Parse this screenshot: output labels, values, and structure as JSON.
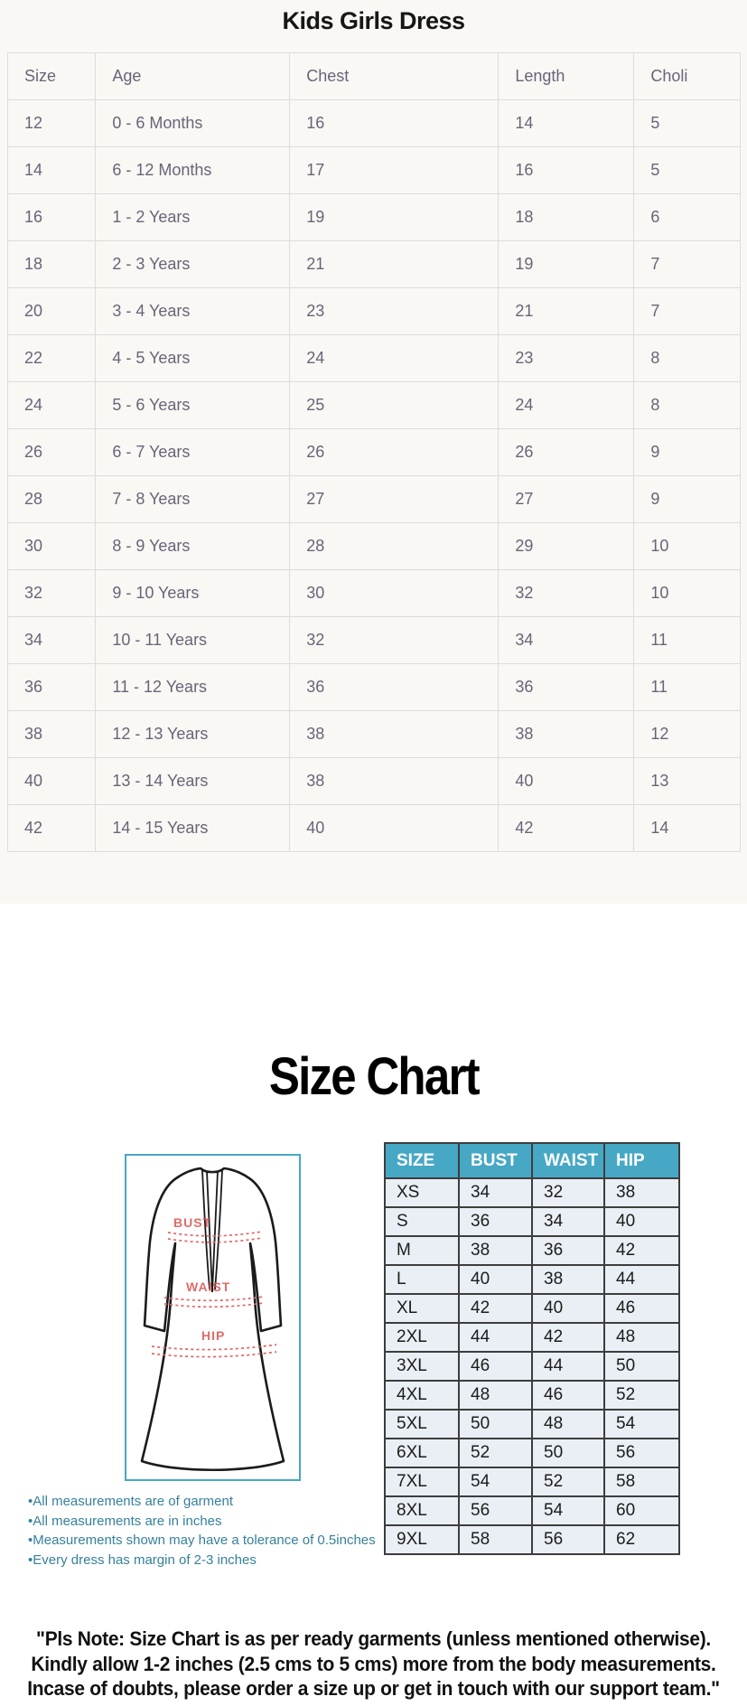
{
  "kids_section": {
    "title": "Kids Girls Dress"
  },
  "kids_table": {
    "columns": [
      "Size",
      "Age",
      "Chest",
      "Length",
      "Choli"
    ],
    "rows": [
      [
        "12",
        "0 - 6 Months",
        "16",
        "14",
        "5"
      ],
      [
        "14",
        "6 - 12 Months",
        "17",
        "16",
        "5"
      ],
      [
        "16",
        "1 - 2 Years",
        "19",
        "18",
        "6"
      ],
      [
        "18",
        "2 - 3 Years",
        "21",
        "19",
        "7"
      ],
      [
        "20",
        "3 - 4 Years",
        "23",
        "21",
        "7"
      ],
      [
        "22",
        "4 - 5 Years",
        "24",
        "23",
        "8"
      ],
      [
        "24",
        "5 - 6 Years",
        "25",
        "24",
        "8"
      ],
      [
        "26",
        "6 - 7 Years",
        "26",
        "26",
        "9"
      ],
      [
        "28",
        "7 - 8 Years",
        "27",
        "27",
        "9"
      ],
      [
        "30",
        "8 - 9 Years",
        "28",
        "29",
        "10"
      ],
      [
        "32",
        "9 - 10 Years",
        "30",
        "32",
        "10"
      ],
      [
        "34",
        "10 - 11 Years",
        "32",
        "34",
        "11"
      ],
      [
        "36",
        "11 - 12 Years",
        "36",
        "36",
        "11"
      ],
      [
        "38",
        "12 - 13 Years",
        "38",
        "38",
        "12"
      ],
      [
        "40",
        "13 - 14 Years",
        "38",
        "40",
        "13"
      ],
      [
        "42",
        "14 - 15 Years",
        "40",
        "42",
        "14"
      ]
    ]
  },
  "adult_section": {
    "title": "Size Chart"
  },
  "adult_table": {
    "columns": [
      "SIZE",
      "BUST",
      "WAIST",
      "HIP"
    ],
    "rows": [
      [
        "XS",
        "34",
        "32",
        "38"
      ],
      [
        "S",
        "36",
        "34",
        "40"
      ],
      [
        "M",
        "38",
        "36",
        "42"
      ],
      [
        "L",
        "40",
        "38",
        "44"
      ],
      [
        "XL",
        "42",
        "40",
        "46"
      ],
      [
        "2XL",
        "44",
        "42",
        "48"
      ],
      [
        "3XL",
        "46",
        "44",
        "50"
      ],
      [
        "4XL",
        "48",
        "46",
        "52"
      ],
      [
        "5XL",
        "50",
        "48",
        "54"
      ],
      [
        "6XL",
        "52",
        "50",
        "56"
      ],
      [
        "7XL",
        "54",
        "52",
        "58"
      ],
      [
        "8XL",
        "56",
        "54",
        "60"
      ],
      [
        "9XL",
        "58",
        "56",
        "62"
      ]
    ]
  },
  "diagram": {
    "bust_label": "BUST",
    "waist_label": "WAIST",
    "hip_label": "HIP"
  },
  "notes": [
    "•All measurements are of garment",
    "•All measurements are in inches",
    "•Measurements shown may have a tolerance of 0.5inches",
    "•Every dress has margin of 2-3 inches"
  ],
  "footer_note": [
    "\"Pls Note: Size Chart is as per ready garments (unless mentioned otherwise).",
    "Kindly allow 1-2 inches (2.5 cms to 5 cms) more from the body measurements.",
    "Incase of doubts, please order a size up or get in touch with our support team.\""
  ],
  "colors": {
    "teal": "#47a8c5",
    "cell_bg": "#e9eff5",
    "cell_border": "#3d3d3d",
    "t1_text": "#6b6379",
    "t1_border": "#dcdcdc",
    "notes_color": "#35809c",
    "dress_red": "#d9534f",
    "dress_dash": "#e06565"
  }
}
